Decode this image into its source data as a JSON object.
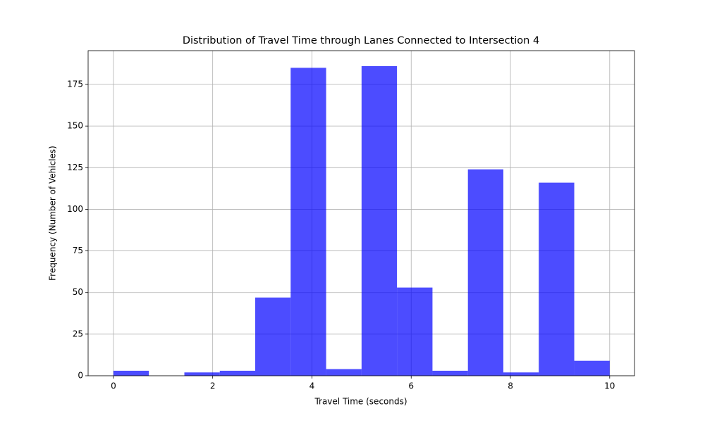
{
  "chart_data": {
    "type": "histogram",
    "title": "Distribution of Travel Time through Lanes Connected to Intersection 4",
    "x_label": "Travel Time (seconds)",
    "y_label": "Frequency (Number of Vehicles)",
    "bins": [
      0,
      0.714,
      1.429,
      2.143,
      2.857,
      3.571,
      4.286,
      5,
      5.714,
      6.429,
      7.143,
      7.857,
      8.571,
      9.286,
      10
    ],
    "counts": [
      3,
      0,
      2,
      3,
      47,
      185,
      4,
      186,
      53,
      3,
      124,
      2,
      116,
      9
    ],
    "color": "#0000ff",
    "alpha": 0.7,
    "xlim": [
      -0.51,
      10.5
    ],
    "ylim": [
      0,
      195.3
    ],
    "xticks": [
      0,
      2,
      4,
      6,
      8,
      10
    ],
    "yticks": [
      0,
      25,
      50,
      75,
      100,
      125,
      150,
      175
    ],
    "grid": true
  }
}
